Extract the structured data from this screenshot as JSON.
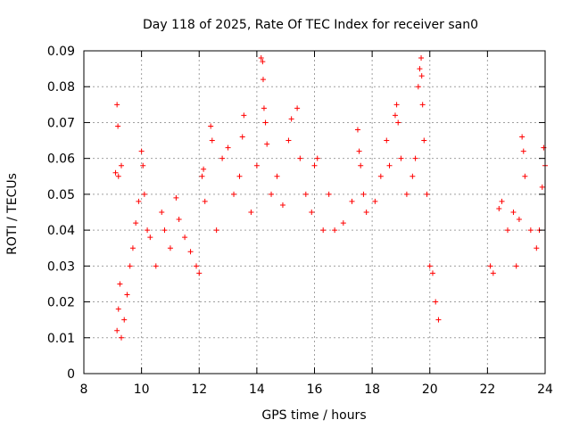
{
  "chart_data": {
    "type": "scatter",
    "title": "Day 118 of 2025, Rate Of TEC Index for receiver san0",
    "xlabel": "GPS time / hours",
    "ylabel": "ROTI / TECUs",
    "xlim": [
      8,
      24
    ],
    "ylim": [
      0,
      0.09
    ],
    "x_ticks": [
      "8",
      "10",
      "12",
      "14",
      "16",
      "18",
      "20",
      "22",
      "24"
    ],
    "y_ticks": [
      "0",
      "0.01",
      "0.02",
      "0.03",
      "0.04",
      "0.05",
      "0.06",
      "0.07",
      "0.08",
      "0.09"
    ],
    "grid": true,
    "marker": "+",
    "color": "#ff0000",
    "series": [
      {
        "points": [
          [
            9.15,
            0.075
          ],
          [
            9.18,
            0.069
          ],
          [
            9.1,
            0.056
          ],
          [
            9.2,
            0.055
          ],
          [
            9.3,
            0.058
          ],
          [
            9.15,
            0.012
          ],
          [
            9.2,
            0.018
          ],
          [
            9.25,
            0.025
          ],
          [
            9.3,
            0.01
          ],
          [
            9.4,
            0.015
          ],
          [
            9.5,
            0.022
          ],
          [
            9.6,
            0.03
          ],
          [
            9.7,
            0.035
          ],
          [
            9.8,
            0.042
          ],
          [
            9.9,
            0.048
          ],
          [
            10.0,
            0.062
          ],
          [
            10.05,
            0.058
          ],
          [
            10.1,
            0.05
          ],
          [
            10.2,
            0.04
          ],
          [
            10.3,
            0.038
          ],
          [
            10.5,
            0.03
          ],
          [
            10.7,
            0.045
          ],
          [
            10.8,
            0.04
          ],
          [
            11.0,
            0.035
          ],
          [
            11.2,
            0.049
          ],
          [
            11.3,
            0.043
          ],
          [
            11.5,
            0.038
          ],
          [
            11.7,
            0.034
          ],
          [
            11.9,
            0.03
          ],
          [
            12.0,
            0.028
          ],
          [
            12.1,
            0.055
          ],
          [
            12.15,
            0.057
          ],
          [
            12.2,
            0.048
          ],
          [
            12.4,
            0.069
          ],
          [
            12.45,
            0.065
          ],
          [
            12.6,
            0.04
          ],
          [
            12.8,
            0.06
          ],
          [
            13.0,
            0.063
          ],
          [
            13.2,
            0.05
          ],
          [
            13.4,
            0.055
          ],
          [
            13.5,
            0.066
          ],
          [
            13.55,
            0.072
          ],
          [
            13.8,
            0.045
          ],
          [
            14.0,
            0.058
          ],
          [
            14.15,
            0.088
          ],
          [
            14.2,
            0.087
          ],
          [
            14.22,
            0.082
          ],
          [
            14.25,
            0.074
          ],
          [
            14.3,
            0.07
          ],
          [
            14.35,
            0.064
          ],
          [
            14.5,
            0.05
          ],
          [
            14.7,
            0.055
          ],
          [
            14.9,
            0.047
          ],
          [
            15.1,
            0.065
          ],
          [
            15.2,
            0.071
          ],
          [
            15.4,
            0.074
          ],
          [
            15.5,
            0.06
          ],
          [
            15.7,
            0.05
          ],
          [
            15.9,
            0.045
          ],
          [
            16.0,
            0.058
          ],
          [
            16.1,
            0.06
          ],
          [
            16.3,
            0.04
          ],
          [
            16.5,
            0.05
          ],
          [
            16.7,
            0.04
          ],
          [
            17.0,
            0.042
          ],
          [
            17.3,
            0.048
          ],
          [
            17.5,
            0.068
          ],
          [
            17.55,
            0.062
          ],
          [
            17.6,
            0.058
          ],
          [
            17.7,
            0.05
          ],
          [
            17.8,
            0.045
          ],
          [
            18.1,
            0.048
          ],
          [
            18.3,
            0.055
          ],
          [
            18.5,
            0.065
          ],
          [
            18.6,
            0.058
          ],
          [
            18.8,
            0.072
          ],
          [
            18.85,
            0.075
          ],
          [
            18.9,
            0.07
          ],
          [
            19.0,
            0.06
          ],
          [
            19.2,
            0.05
          ],
          [
            19.4,
            0.055
          ],
          [
            19.5,
            0.06
          ],
          [
            19.6,
            0.08
          ],
          [
            19.65,
            0.085
          ],
          [
            19.7,
            0.088
          ],
          [
            19.72,
            0.083
          ],
          [
            19.75,
            0.075
          ],
          [
            19.8,
            0.065
          ],
          [
            19.9,
            0.05
          ],
          [
            20.0,
            0.03
          ],
          [
            20.1,
            0.028
          ],
          [
            20.2,
            0.02
          ],
          [
            20.3,
            0.015
          ],
          [
            22.1,
            0.03
          ],
          [
            22.2,
            0.028
          ],
          [
            22.4,
            0.046
          ],
          [
            22.5,
            0.048
          ],
          [
            22.7,
            0.04
          ],
          [
            22.9,
            0.045
          ],
          [
            23.0,
            0.03
          ],
          [
            23.1,
            0.043
          ],
          [
            23.2,
            0.066
          ],
          [
            23.25,
            0.062
          ],
          [
            23.3,
            0.055
          ],
          [
            23.5,
            0.04
          ],
          [
            23.7,
            0.035
          ],
          [
            23.8,
            0.04
          ],
          [
            23.9,
            0.052
          ],
          [
            23.95,
            0.063
          ],
          [
            24.0,
            0.058
          ]
        ]
      }
    ]
  }
}
